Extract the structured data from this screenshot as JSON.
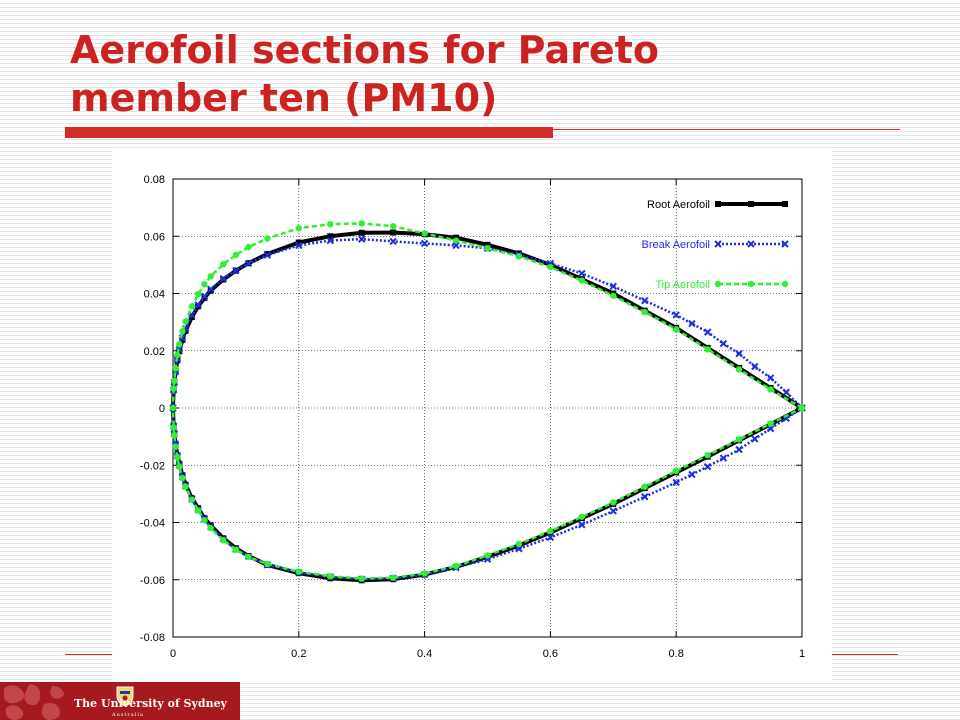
{
  "slide": {
    "title": "Aerofoil sections for Pareto member ten (PM10)",
    "colors": {
      "title": "#cc2222",
      "rule": "#d62b2b",
      "logo_bg": "#a6191e"
    }
  },
  "logo": {
    "name": "The University of Sydney",
    "sub": "Australia"
  },
  "chart_data": {
    "type": "line",
    "title": "",
    "xlabel": "",
    "ylabel": "",
    "xlim": [
      0,
      1
    ],
    "ylim": [
      -0.08,
      0.08
    ],
    "xticks": [
      0,
      0.2,
      0.4,
      0.6,
      0.8,
      1
    ],
    "xtick_labels": [
      "0",
      "0.2",
      "0.4",
      "0.6",
      "0.8",
      "1"
    ],
    "yticks": [
      -0.08,
      -0.06,
      -0.04,
      -0.02,
      0,
      0.02,
      0.04,
      0.06,
      0.08
    ],
    "ytick_labels": [
      "-0.08",
      "-0.06",
      "-0.04",
      "-0.02",
      "0",
      "0.02",
      "0.04",
      "0.06",
      "0.08"
    ],
    "grid": true,
    "legend_position": "top-right",
    "series": [
      {
        "name": "Root Aerofoil",
        "color": "#000000",
        "style": "solid",
        "marker": "square",
        "x": [
          1.0,
          0.95,
          0.9,
          0.85,
          0.8,
          0.75,
          0.7,
          0.65,
          0.6,
          0.55,
          0.5,
          0.45,
          0.4,
          0.35,
          0.3,
          0.25,
          0.2,
          0.15,
          0.12,
          0.1,
          0.08,
          0.06,
          0.05,
          0.04,
          0.03,
          0.02,
          0.015,
          0.01,
          0.007,
          0.004,
          0.002,
          0.001,
          0.0,
          0.001,
          0.002,
          0.004,
          0.007,
          0.01,
          0.015,
          0.02,
          0.03,
          0.04,
          0.05,
          0.06,
          0.08,
          0.1,
          0.12,
          0.15,
          0.2,
          0.25,
          0.3,
          0.35,
          0.4,
          0.45,
          0.5,
          0.55,
          0.6,
          0.65,
          0.7,
          0.75,
          0.8,
          0.85,
          0.9,
          0.95,
          1.0
        ],
        "y": [
          0.0,
          0.007,
          0.014,
          0.021,
          0.028,
          0.034,
          0.04,
          0.045,
          0.05,
          0.054,
          0.057,
          0.0595,
          0.0607,
          0.0613,
          0.0612,
          0.06,
          0.0578,
          0.0538,
          0.0506,
          0.048,
          0.0449,
          0.041,
          0.0385,
          0.0355,
          0.0318,
          0.027,
          0.0238,
          0.0198,
          0.0167,
          0.0125,
          0.0088,
          0.0062,
          0.0,
          -0.0062,
          -0.0088,
          -0.0125,
          -0.0165,
          -0.0195,
          -0.0235,
          -0.0268,
          -0.0315,
          -0.035,
          -0.0385,
          -0.041,
          -0.0455,
          -0.049,
          -0.0517,
          -0.0548,
          -0.0577,
          -0.0595,
          -0.0602,
          -0.0598,
          -0.0582,
          -0.0555,
          -0.052,
          -0.048,
          -0.0435,
          -0.0385,
          -0.0335,
          -0.028,
          -0.0225,
          -0.017,
          -0.0113,
          -0.0057,
          0.0
        ]
      },
      {
        "name": "Break Aerofoil",
        "color": "#1f2de0",
        "style": "dotted",
        "marker": "x",
        "x": [
          1.0,
          0.975,
          0.95,
          0.925,
          0.9,
          0.875,
          0.85,
          0.825,
          0.8,
          0.75,
          0.7,
          0.65,
          0.6,
          0.55,
          0.5,
          0.45,
          0.4,
          0.35,
          0.3,
          0.25,
          0.2,
          0.15,
          0.12,
          0.1,
          0.08,
          0.06,
          0.05,
          0.04,
          0.03,
          0.02,
          0.015,
          0.01,
          0.007,
          0.004,
          0.002,
          0.001,
          0.0,
          0.001,
          0.002,
          0.004,
          0.007,
          0.01,
          0.015,
          0.02,
          0.03,
          0.04,
          0.05,
          0.06,
          0.08,
          0.1,
          0.12,
          0.15,
          0.2,
          0.25,
          0.3,
          0.35,
          0.4,
          0.45,
          0.5,
          0.55,
          0.6,
          0.65,
          0.7,
          0.75,
          0.8,
          0.825,
          0.85,
          0.875,
          0.9,
          0.925,
          0.95,
          0.975,
          1.0
        ],
        "y": [
          0.0,
          0.0055,
          0.0105,
          0.0145,
          0.019,
          0.0225,
          0.0265,
          0.0295,
          0.0325,
          0.0375,
          0.0425,
          0.047,
          0.0505,
          0.0535,
          0.0558,
          0.0568,
          0.0575,
          0.0582,
          0.059,
          0.0585,
          0.0568,
          0.0534,
          0.0505,
          0.048,
          0.0452,
          0.0415,
          0.039,
          0.036,
          0.0325,
          0.0278,
          0.0245,
          0.0205,
          0.0172,
          0.0128,
          0.009,
          0.0064,
          0.0,
          -0.0064,
          -0.009,
          -0.0128,
          -0.0168,
          -0.02,
          -0.024,
          -0.0272,
          -0.0318,
          -0.0355,
          -0.0388,
          -0.0415,
          -0.0458,
          -0.0493,
          -0.0518,
          -0.0548,
          -0.0575,
          -0.059,
          -0.0598,
          -0.0595,
          -0.0582,
          -0.0558,
          -0.0528,
          -0.0492,
          -0.0452,
          -0.0408,
          -0.036,
          -0.031,
          -0.026,
          -0.0232,
          -0.0205,
          -0.0175,
          -0.0145,
          -0.0108,
          -0.0072,
          -0.0036,
          0.0
        ]
      },
      {
        "name": "Tip Aerofoil",
        "color": "#2ef032",
        "style": "dashed",
        "marker": "circle",
        "x": [
          1.0,
          0.95,
          0.9,
          0.85,
          0.8,
          0.75,
          0.7,
          0.65,
          0.6,
          0.55,
          0.5,
          0.45,
          0.4,
          0.35,
          0.3,
          0.25,
          0.2,
          0.15,
          0.12,
          0.1,
          0.08,
          0.06,
          0.05,
          0.04,
          0.03,
          0.02,
          0.015,
          0.01,
          0.007,
          0.004,
          0.002,
          0.001,
          0.0,
          0.001,
          0.002,
          0.004,
          0.007,
          0.01,
          0.015,
          0.02,
          0.03,
          0.04,
          0.05,
          0.06,
          0.08,
          0.1,
          0.12,
          0.15,
          0.2,
          0.25,
          0.3,
          0.35,
          0.4,
          0.45,
          0.5,
          0.55,
          0.6,
          0.65,
          0.7,
          0.75,
          0.8,
          0.85,
          0.9,
          0.95,
          1.0
        ],
        "y": [
          0.0,
          0.0065,
          0.0135,
          0.0205,
          0.0275,
          0.0335,
          0.0392,
          0.0445,
          0.0492,
          0.053,
          0.0558,
          0.0585,
          0.061,
          0.0635,
          0.0645,
          0.0642,
          0.0628,
          0.0592,
          0.0562,
          0.0535,
          0.0502,
          0.046,
          0.0432,
          0.0398,
          0.0355,
          0.0302,
          0.0268,
          0.0222,
          0.0185,
          0.0138,
          0.0095,
          0.0068,
          0.0,
          -0.0068,
          -0.0095,
          -0.0135,
          -0.0172,
          -0.0205,
          -0.0245,
          -0.0275,
          -0.032,
          -0.0358,
          -0.0392,
          -0.042,
          -0.0462,
          -0.0495,
          -0.052,
          -0.0545,
          -0.0572,
          -0.0588,
          -0.0596,
          -0.0593,
          -0.0578,
          -0.0552,
          -0.0515,
          -0.0475,
          -0.043,
          -0.038,
          -0.033,
          -0.0275,
          -0.022,
          -0.0165,
          -0.011,
          -0.0055,
          0.0
        ]
      }
    ]
  }
}
